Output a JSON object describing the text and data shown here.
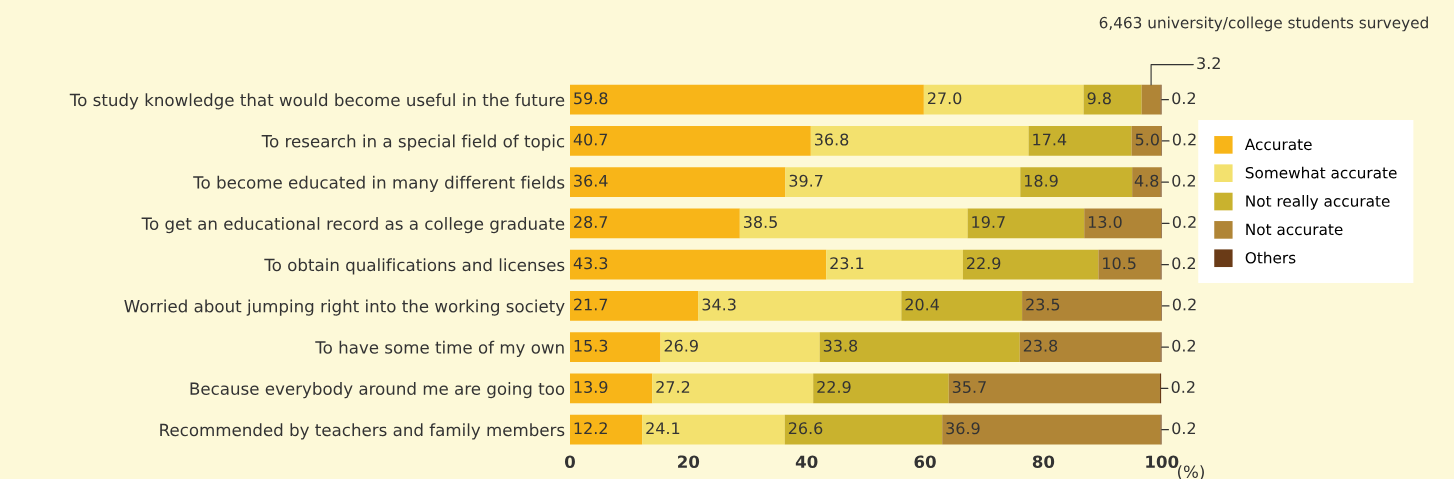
{
  "chart_data": {
    "type": "bar",
    "orientation": "horizontal",
    "stacked": true,
    "subtitle": "6,463 university/college students surveyed",
    "xlabel": "(%)",
    "categories": [
      "To study knowledge that would become useful in the future",
      "To research in a special field of topic",
      "To become educated in many different fields",
      "To get an educational record as a college graduate",
      "To obtain qualifications and licenses",
      "Worried about jumping right into the working society",
      "To have some time of my own",
      "Because everybody around me are going too",
      "Recommended by teachers and family members"
    ],
    "series": [
      {
        "name": "Accurate",
        "color": "#f8b518",
        "values": [
          59.8,
          40.7,
          36.4,
          28.7,
          43.3,
          21.7,
          15.3,
          13.9,
          12.2
        ],
        "value_labels": [
          "59.8",
          "40.7",
          "36.4",
          "28.7",
          "43.3",
          "21.7",
          "15.3",
          "13.9",
          "12.2"
        ]
      },
      {
        "name": "Somewhat accurate",
        "color": "#f3e16e",
        "values": [
          27.0,
          36.8,
          39.7,
          38.5,
          23.1,
          34.3,
          26.9,
          27.2,
          24.1
        ],
        "value_labels": [
          "27.0",
          "36.8",
          "39.7",
          "38.5",
          "23.1",
          "34.3",
          "26.9",
          "27.2",
          "24.1"
        ]
      },
      {
        "name": "Not really accurate",
        "color": "#c9b22e",
        "values": [
          9.8,
          17.4,
          18.9,
          19.7,
          22.9,
          20.4,
          33.8,
          22.9,
          26.6
        ],
        "value_labels": [
          "9.8",
          "17.4",
          "18.9",
          "19.7",
          "22.9",
          "20.4",
          "33.8",
          "22.9",
          "26.6"
        ]
      },
      {
        "name": "Not accurate",
        "color": "#b08536",
        "values": [
          3.2,
          5.0,
          4.8,
          13.0,
          10.5,
          23.5,
          23.8,
          35.7,
          36.9
        ],
        "value_labels": [
          "3.2",
          "5.0",
          "4.8",
          "13.0",
          "10.5",
          "23.5",
          "23.8",
          "35.7",
          "36.9"
        ]
      },
      {
        "name": "Others",
        "color": "#6a3b17",
        "values": [
          0.2,
          0.2,
          0.2,
          0.2,
          0.2,
          0.2,
          0.2,
          0.2,
          0.2
        ],
        "value_labels": [
          "0.2",
          "0.2",
          "0.2",
          "0.2",
          "0.2",
          "0.2",
          "0.2",
          "0.2",
          "0.2"
        ]
      }
    ],
    "xlim": [
      0,
      100
    ],
    "xticks": [
      0,
      20,
      40,
      60,
      80,
      100
    ],
    "grid": false,
    "legend": "right"
  }
}
